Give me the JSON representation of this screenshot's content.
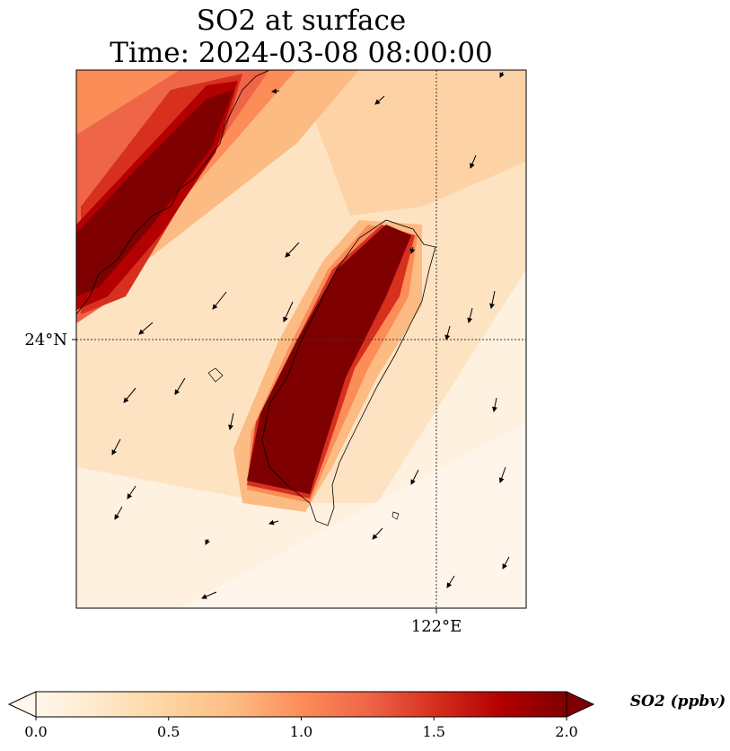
{
  "title": "SO2 at surface",
  "subtitle": "Time: 2024-03-08 08:00:00",
  "map": {
    "lat_tick": "24°N",
    "lon_tick": "122°E",
    "gridlines": "dotted",
    "colormap": "OrRd"
  },
  "colorbar": {
    "label": "SO2 (ppbv)",
    "ticks": [
      "0.0",
      "0.5",
      "1.0",
      "1.5",
      "2.0"
    ],
    "min": 0.0,
    "max": 2.0,
    "extend": "both",
    "colors": [
      "#fff7ec",
      "#fee8c8",
      "#fdd49e",
      "#fdbb84",
      "#fc8d59",
      "#ef6548",
      "#d7301f",
      "#b30000",
      "#7f0000"
    ]
  }
}
